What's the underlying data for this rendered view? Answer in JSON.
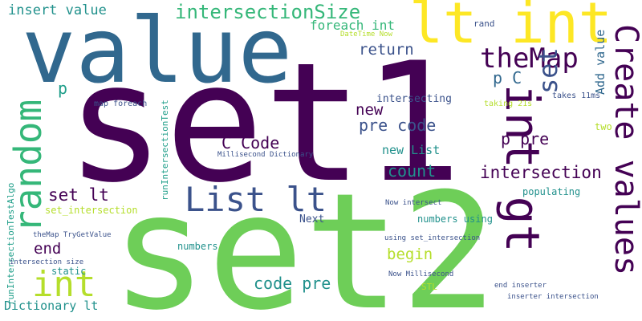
{
  "colors": {
    "deep_purple": "#440154",
    "indigo": "#3b528b",
    "navy_blue": "#31688e",
    "teal": "#21918c",
    "teal_green": "#1f9e89",
    "green": "#35b779",
    "lime_green": "#6ece58",
    "yellow_green": "#b5de2b",
    "yellow": "#fde725"
  },
  "words": {
    "set1": "set1",
    "set2": "set2",
    "value": "value",
    "lt_int": "lt int",
    "int_gt": "int gt",
    "random": "random",
    "create_values": "Create values",
    "list_lt": "List lt",
    "themap": "theMap",
    "int": "int",
    "insert_value": "insert value",
    "intersectionsize": "intersectionSize",
    "c_code": "C Code",
    "set_lt": "set lt",
    "set": "set",
    "intersection": "intersection",
    "pre_code": "pre code",
    "p_pre": "p pre",
    "code_pre": "code pre",
    "count": "count",
    "new": "new",
    "return": "return",
    "end": "end",
    "begin": "begin",
    "foreach_int": "foreach int",
    "p_c": "p C",
    "p": "p",
    "new_list": "new List",
    "add_value": "Add value",
    "rand": "rand",
    "datetime_now": "DateTime Now",
    "intersecting": "intersecting",
    "taking_21s": "taking 21s",
    "takes_11ms": "takes 11ms",
    "two": "two",
    "map_foreach": "map foreach",
    "runintersectiontest": "runIntersectionTest",
    "runintersectiontestalgo": "runIntersectionTestAlgo",
    "millisecond_dictionary": "Millisecond Dictionary",
    "set_intersection": "set_intersection",
    "populating": "populating",
    "now_intersect": "Now intersect",
    "next": "Next",
    "numbers_using": "numbers using",
    "themap_trygetvalue": "theMap TryGetValue",
    "using_set_intersection": "using set_intersection",
    "intersection_size": "intersection size",
    "numbers": "numbers",
    "static": "static",
    "now_millisecond": "Now Millisecond",
    "stl": "STL",
    "end_inserter": "end inserter",
    "dictionary_lt": "Dictionary lt",
    "inserter_intersection": "inserter intersection"
  }
}
